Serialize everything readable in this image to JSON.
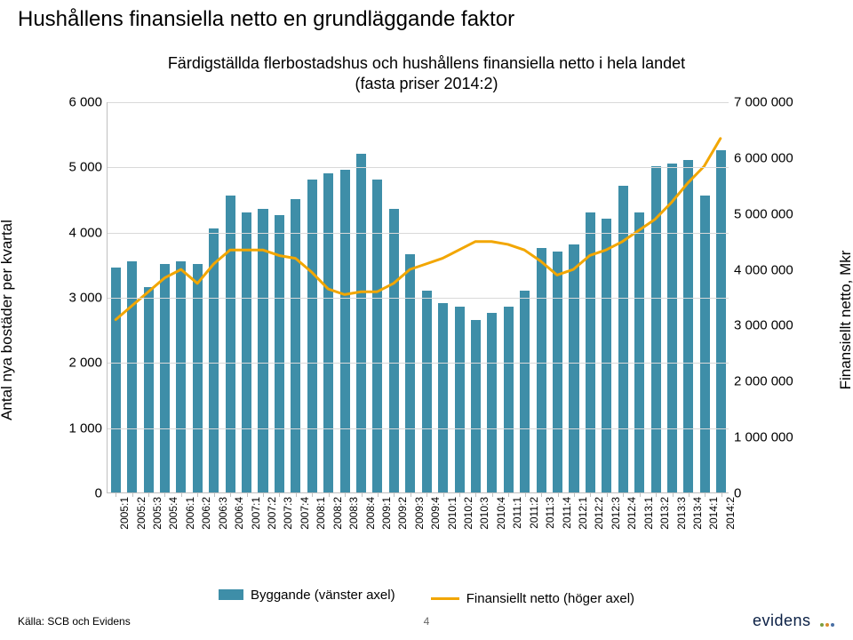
{
  "title": "Hushållens finansiella netto en grundläggande faktor",
  "subtitle": "Färdigställda flerbostadshus och hushållens finansiella netto i hela landet\n(fasta priser 2014:2)",
  "y_left_title": "Antal nya bostäder per kvartal",
  "y_right_title": "Finansiellt netto, Mkr",
  "chart": {
    "type": "bar+line",
    "title_fontsize": 24,
    "subtitle_fontsize": 18,
    "label_fontsize": 15,
    "tick_fontsize": 12,
    "bar_color": "#3e8ea8",
    "line_color": "#f2a600",
    "line_width": 3,
    "grid_color": "#d9d9d9",
    "axis_color": "#bfbfbf",
    "background_color": "#ffffff",
    "y_left": {
      "min": 0,
      "max": 6000,
      "step": 1000
    },
    "y_right": {
      "min": 0,
      "max": 7000000,
      "step": 1000000
    },
    "y_left_ticks": [
      "0",
      "1 000",
      "2 000",
      "3 000",
      "4 000",
      "5 000",
      "6 000"
    ],
    "y_right_ticks": [
      "0",
      "1 000 000",
      "2 000 000",
      "3 000 000",
      "4 000 000",
      "5 000 000",
      "6 000 000",
      "7 000 000"
    ],
    "categories": [
      "2005:1",
      "2005:2",
      "2005:3",
      "2005:4",
      "2006:1",
      "2006:2",
      "2006:3",
      "2006:4",
      "2007:1",
      "2007:2",
      "2007:3",
      "2007:4",
      "2008:1",
      "2008:2",
      "2008:3",
      "2008:4",
      "2009:1",
      "2009:2",
      "2009:3",
      "2009:4",
      "2010:1",
      "2010:2",
      "2010:3",
      "2010:4",
      "2011:1",
      "2011:2",
      "2011:3",
      "2011:4",
      "2012:1",
      "2012:2",
      "2012:3",
      "2012:4",
      "2013:1",
      "2013:2",
      "2013:3",
      "2013:4",
      "2014:1",
      "2014:2"
    ],
    "bar_values": [
      3450,
      3550,
      3150,
      3500,
      3550,
      3500,
      4050,
      4550,
      4300,
      4350,
      4250,
      4500,
      4800,
      4900,
      4950,
      5200,
      4800,
      4350,
      3650,
      3100,
      2900,
      2850,
      2650,
      2750,
      2850,
      3100,
      3750,
      3700,
      3800,
      4300,
      4200,
      4700,
      4300,
      5000,
      5050,
      5100,
      4550,
      5250
    ],
    "line_values": [
      3100000,
      3350000,
      3600000,
      3850000,
      4000000,
      3750000,
      4100000,
      4350000,
      4350000,
      4350000,
      4250000,
      4200000,
      3950000,
      3650000,
      3550000,
      3600000,
      3600000,
      3750000,
      4000000,
      4100000,
      4200000,
      4350000,
      4500000,
      4500000,
      4450000,
      4350000,
      4150000,
      3900000,
      4000000,
      4250000,
      4350000,
      4500000,
      4700000,
      4900000,
      5200000,
      5550000,
      5850000,
      6350000
    ],
    "bar_width_ratio": 0.6
  },
  "legend": {
    "bar_label": "Byggande (vänster axel)",
    "line_label": "Finansiellt netto (höger axel)"
  },
  "source": "Källa: SCB och Evidens",
  "page_number": "4",
  "brand": {
    "name": "evidens",
    "dot_colors": [
      "#7a9e3f",
      "#d98c2b",
      "#4a6fa5"
    ]
  }
}
